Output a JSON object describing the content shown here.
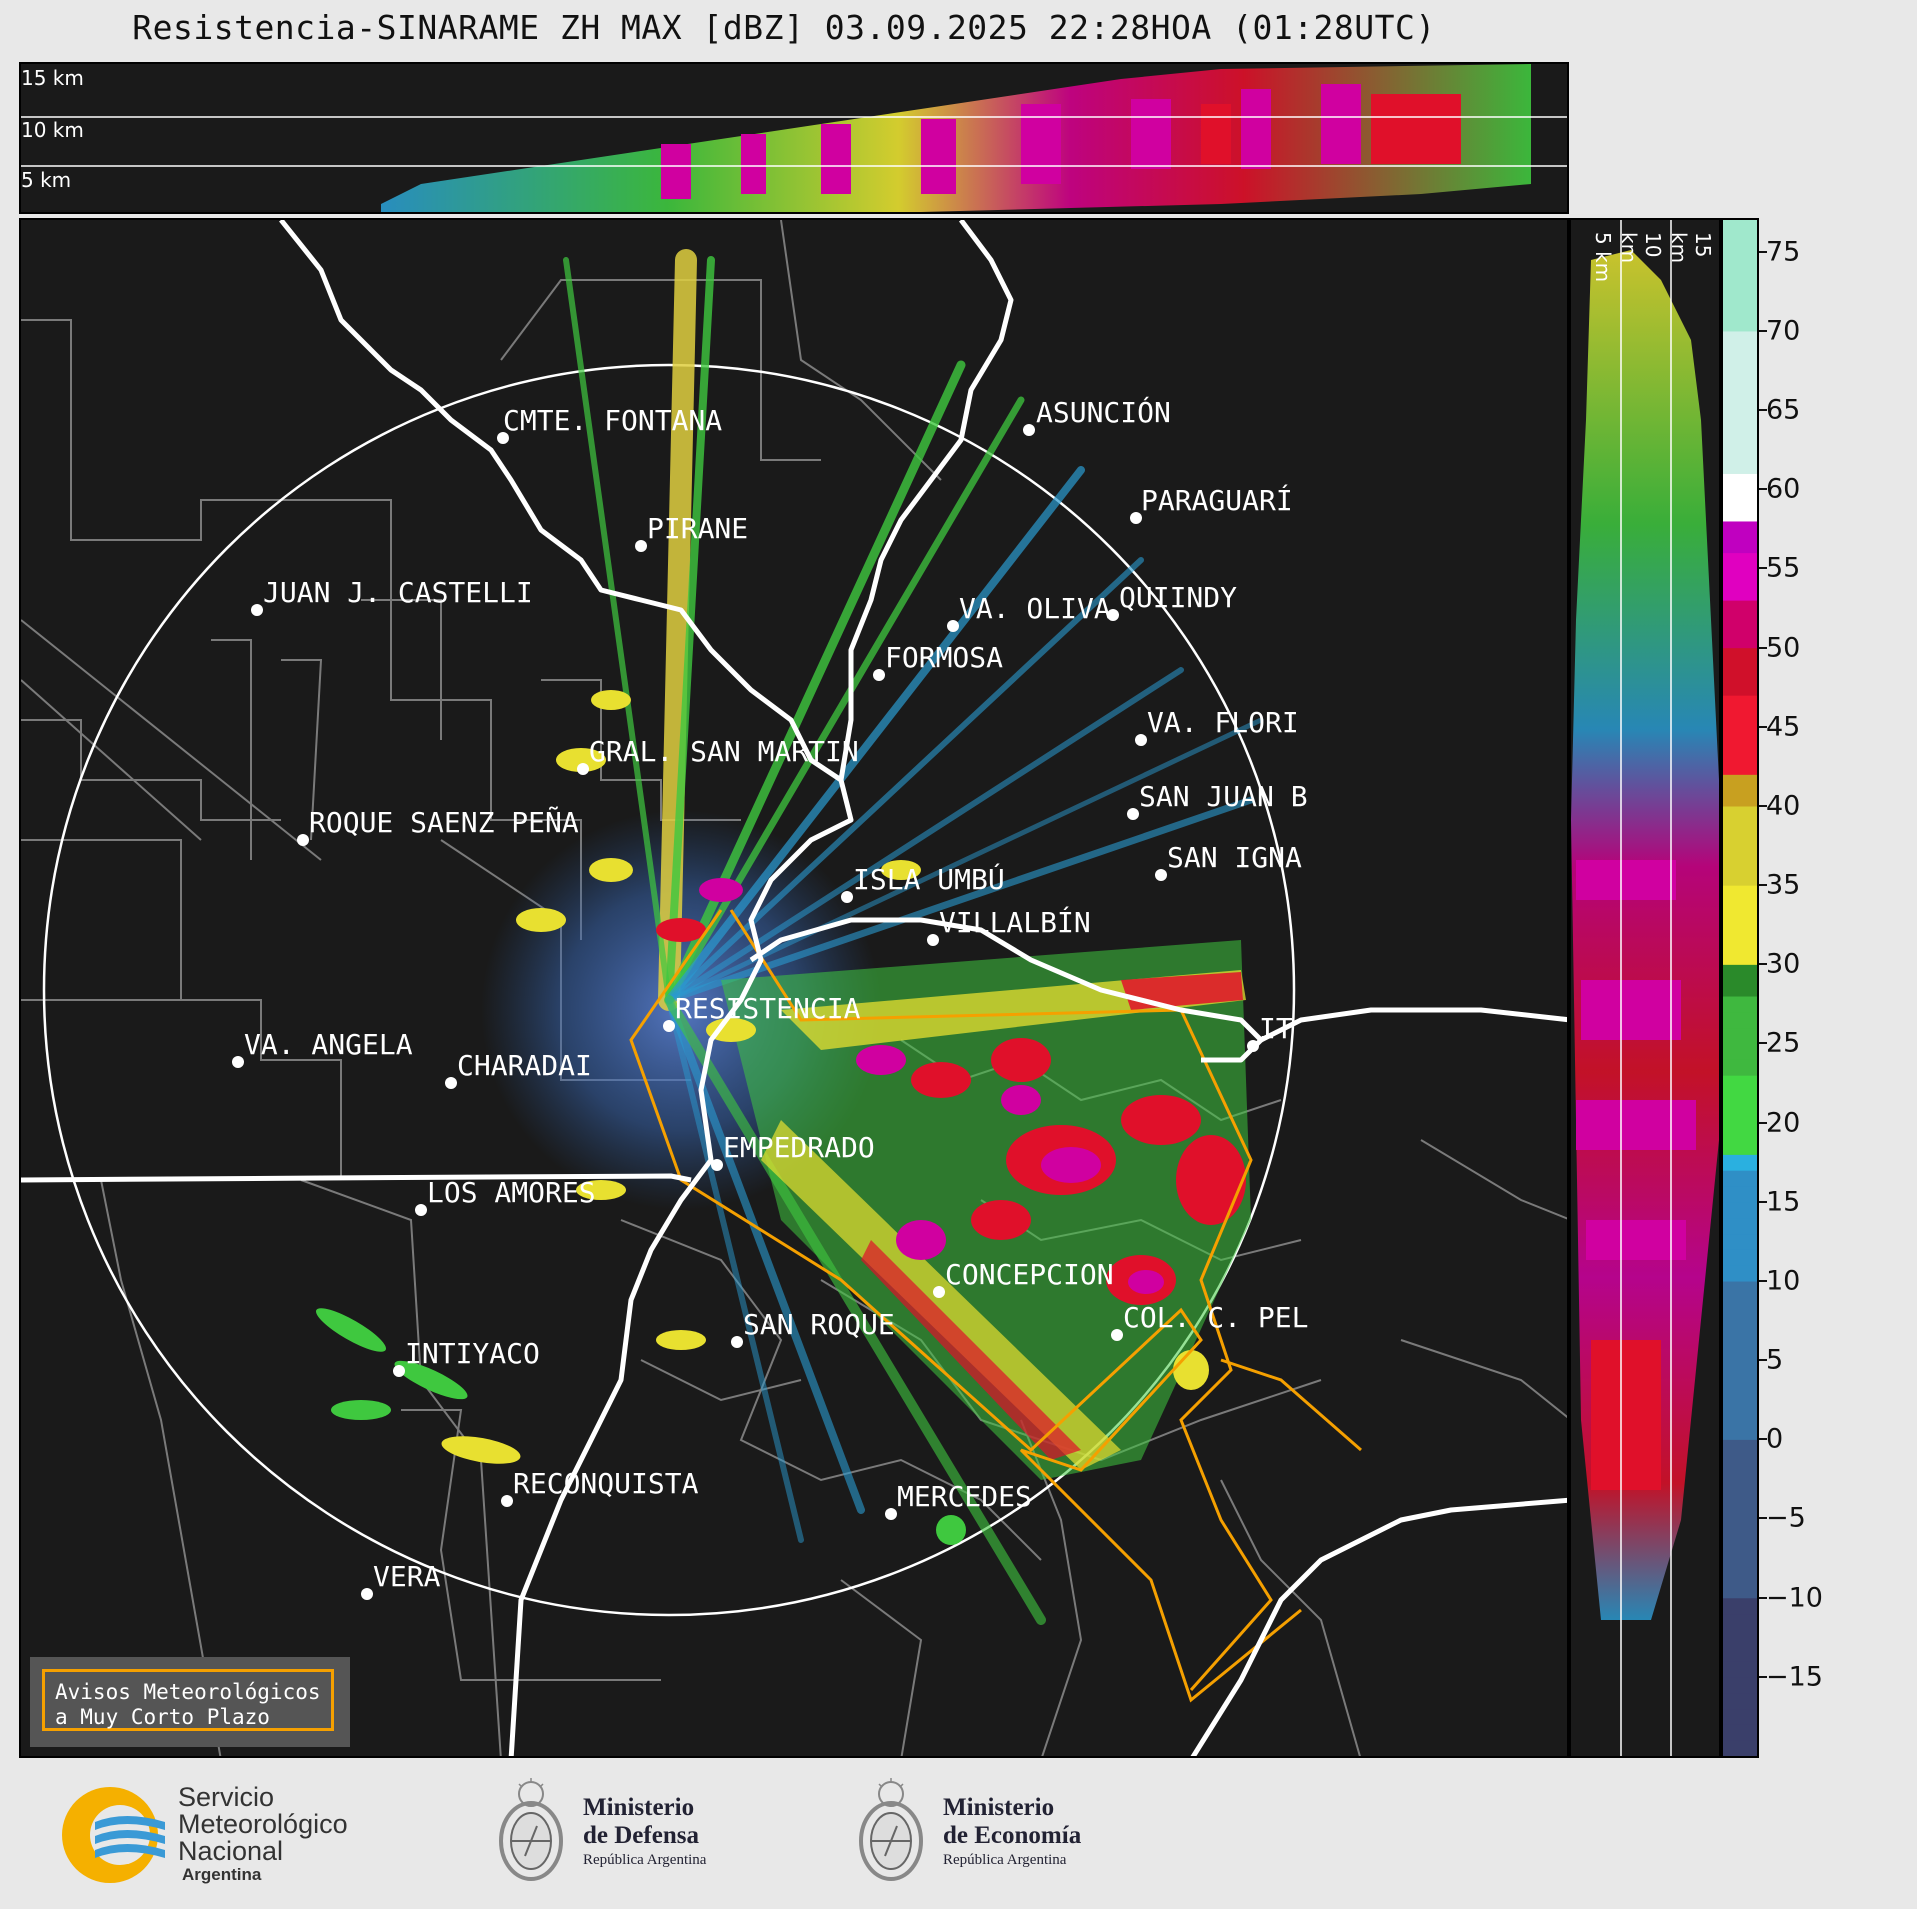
{
  "title": "Resistencia-SINARAME ZH MAX [dBZ] 03.09.2025 22:28HOA (01:28UTC)",
  "top_panel": {
    "height_labels": [
      "15 km",
      "10 km",
      "5 km"
    ]
  },
  "right_panel": {
    "height_labels": [
      "5 km",
      "10 km",
      "15 km"
    ]
  },
  "colorbar": {
    "ticks": [
      "75",
      "70",
      "65",
      "60",
      "55",
      "50",
      "45",
      "40",
      "35",
      "30",
      "25",
      "20",
      "15",
      "10",
      "5",
      "0",
      "−5",
      "−10",
      "−15"
    ],
    "range": [
      -20,
      77
    ]
  },
  "cities": [
    {
      "name": "CMTE. FONTANA"
    },
    {
      "name": "ASUNCIÓN"
    },
    {
      "name": "PARAGUARÍ"
    },
    {
      "name": "PIRANE"
    },
    {
      "name": "JUAN J. CASTELLI"
    },
    {
      "name": "VA. OLIVA"
    },
    {
      "name": "QUIINDY"
    },
    {
      "name": "FORMOSA"
    },
    {
      "name": "VA. FLORI"
    },
    {
      "name": "GRAL. SAN MARTIN"
    },
    {
      "name": "SAN JUAN B"
    },
    {
      "name": "ROQUE SAENZ PEÑA"
    },
    {
      "name": "SAN IGNA"
    },
    {
      "name": "ISLA UMBÚ"
    },
    {
      "name": "VILLALBÍN"
    },
    {
      "name": "RESISTENCIA"
    },
    {
      "name": "IT"
    },
    {
      "name": "VA. ANGELA"
    },
    {
      "name": "CHARADAI"
    },
    {
      "name": "EMPEDRADO"
    },
    {
      "name": "LOS AMORES"
    },
    {
      "name": "CONCEPCION"
    },
    {
      "name": "SAN ROQUE"
    },
    {
      "name": "COL. C. PEL"
    },
    {
      "name": "INTIYACO"
    },
    {
      "name": "RECONQUISTA"
    },
    {
      "name": "MERCEDES"
    },
    {
      "name": "VERA"
    }
  ],
  "aviso": {
    "line1": "Avisos Meteorológicos",
    "line2": "a Muy Corto Plazo"
  },
  "logos": {
    "smn": {
      "line1": "Servicio",
      "line2": "Meteorológico",
      "line3": "Nacional",
      "line4": "Argentina"
    },
    "defensa": {
      "line1": "Ministerio",
      "line2": "de Defensa",
      "line3": "República Argentina"
    },
    "economia": {
      "line1": "Ministerio",
      "line2": "de Economía",
      "line3": "República Argentina"
    }
  }
}
